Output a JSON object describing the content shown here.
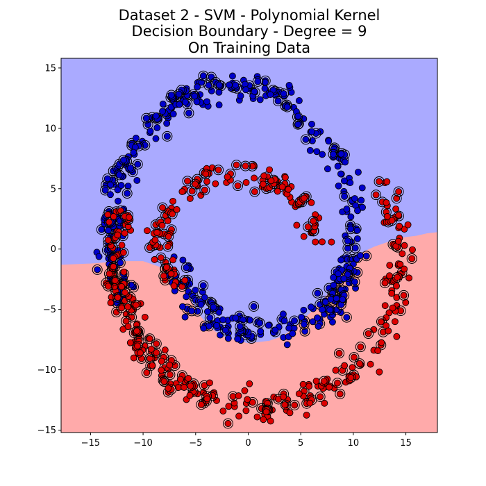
{
  "chart_data": {
    "type": "scatter",
    "title": "Dataset 2 - SVM - Polynomial Kernel\nDecision Boundary - Degree = 9\nOn Training Data",
    "xlabel": "",
    "ylabel": "",
    "xlim": [
      -17.8,
      18.0
    ],
    "ylim": [
      -15.2,
      15.8
    ],
    "x_ticks": [
      -15,
      -10,
      -5,
      0,
      5,
      10,
      15
    ],
    "y_ticks": [
      15,
      10,
      5,
      0,
      -5,
      -10,
      -15
    ],
    "grid": false,
    "region_colors": {
      "class_blue": "#aaaaff",
      "class_red": "#ffaaaa"
    },
    "point_colors": {
      "class_blue": "#0000cc",
      "class_red": "#dd0000"
    },
    "decision_boundary": {
      "x": [
        -17.8,
        -15,
        -12,
        -10,
        -8,
        -6.5,
        -5.5,
        -4.5,
        -3.5,
        -2.5,
        -1,
        0,
        1,
        2,
        3,
        4,
        5,
        6,
        7,
        8,
        9,
        10,
        11,
        12,
        13,
        14,
        15,
        16,
        17,
        18
      ],
      "y": [
        -1.3,
        -1.2,
        -1.0,
        -1.0,
        -1.6,
        -2.6,
        -4.2,
        -5.6,
        -6.6,
        -7.2,
        -7.6,
        -7.8,
        -7.7,
        -7.6,
        -7.3,
        -6.8,
        -6.0,
        -5.2,
        -4.3,
        -3.3,
        -2.0,
        -0.9,
        -0.2,
        0.2,
        0.5,
        0.8,
        1.0,
        1.1,
        1.3,
        1.4
      ]
    },
    "series": [
      {
        "name": "outer spiral (blue class)",
        "color": "#0000cc",
        "shape": "ring",
        "center": [
          -1.5,
          0.8
        ],
        "rx": 11.5,
        "ry": 12.6,
        "angle_range_deg": [
          -30,
          205
        ],
        "count": 300
      },
      {
        "name": "inner arc (blue class)",
        "color": "#0000cc",
        "shape": "ring",
        "center": [
          1.5,
          -1.2
        ],
        "rx": 8.0,
        "ry": 5.5,
        "angle_range_deg": [
          180,
          360
        ],
        "count": 150
      },
      {
        "name": "inner arc (red class)",
        "color": "#dd0000",
        "shape": "ring",
        "center": [
          -1.0,
          0.6
        ],
        "rx": 7.5,
        "ry": 5.5,
        "angle_range_deg": [
          0,
          220
        ],
        "count": 130
      },
      {
        "name": "outer spiral (red class)",
        "color": "#dd0000",
        "shape": "ring",
        "center": [
          1.0,
          -0.8
        ],
        "rx": 13.5,
        "ry": 12.3,
        "angle_range_deg": [
          160,
          390
        ],
        "count": 300
      }
    ],
    "support_vector_fraction": 0.4
  }
}
